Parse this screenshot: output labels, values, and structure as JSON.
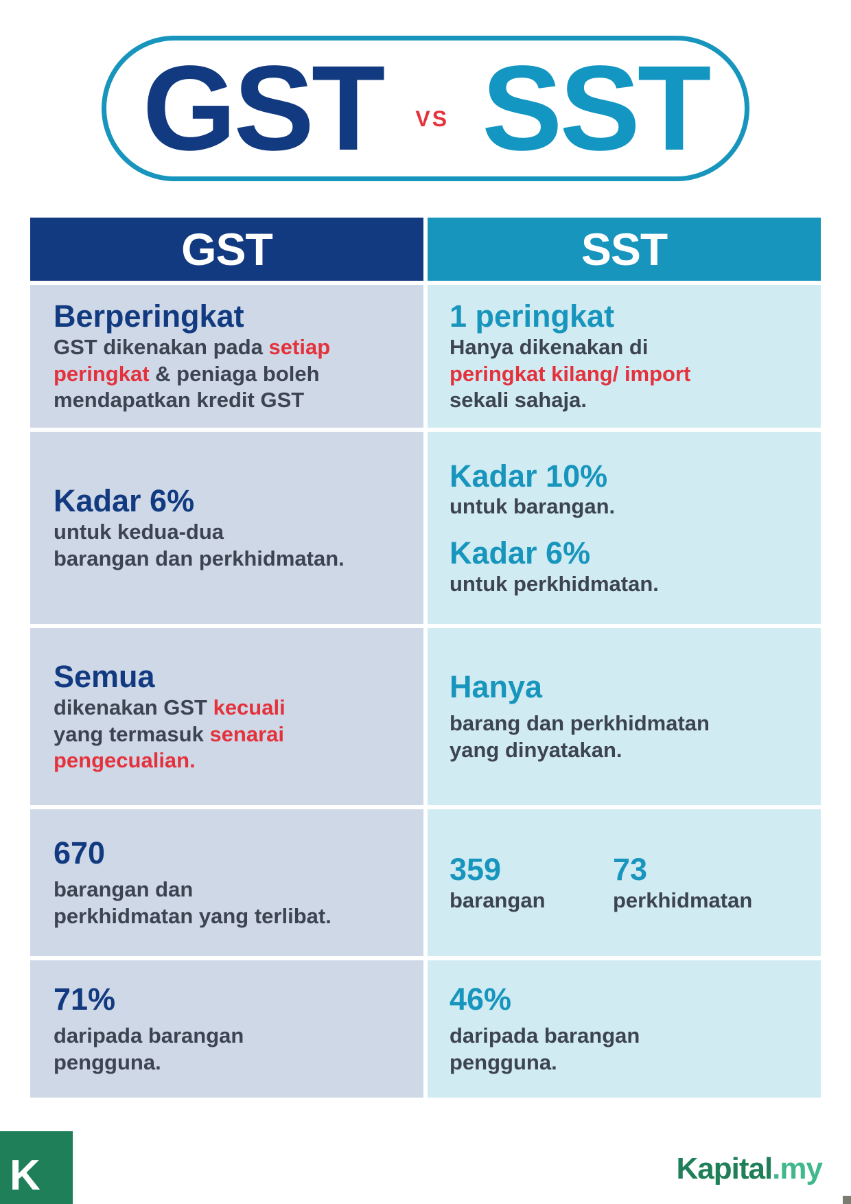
{
  "title": {
    "left": "GST",
    "vs": "VS",
    "right": "SST"
  },
  "header": {
    "gst": "GST",
    "sst": "SST"
  },
  "rows": [
    {
      "gst": {
        "heading": "Berperingkat",
        "line1_a": "GST dikenakan pada ",
        "line1_red": "setiap",
        "line2_red": "peringkat",
        "line2_b": " & peniaga boleh",
        "line3": "mendapatkan kredit GST"
      },
      "sst": {
        "heading": "1 peringkat",
        "line1": "Hanya dikenakan di",
        "line2_red": "peringkat kilang/ import",
        "line3": "sekali sahaja."
      }
    },
    {
      "gst": {
        "heading": "Kadar 6%",
        "line1": "untuk kedua-dua",
        "line2": "barangan dan perkhidmatan."
      },
      "sst": {
        "heading1": "Kadar 10%",
        "text1": "untuk barangan.",
        "heading2": "Kadar 6%",
        "text2": "untuk perkhidmatan."
      }
    },
    {
      "gst": {
        "heading": "Semua",
        "line1_a": "dikenakan GST ",
        "line1_red": "kecuali",
        "line2_a": "yang termasuk ",
        "line2_red": "senarai",
        "line3_red": "pengecualian."
      },
      "sst": {
        "heading": "Hanya",
        "line1": "barang dan perkhidmatan",
        "line2": "yang dinyatakan."
      }
    },
    {
      "gst": {
        "heading": "670",
        "line1": "barangan dan",
        "line2": "perkhidmatan yang terlibat."
      },
      "sst": {
        "num1": "359",
        "label1": "barangan",
        "num2": "73",
        "label2": "perkhidmatan"
      }
    },
    {
      "gst": {
        "heading": "71%",
        "line1": "daripada barangan",
        "line2": "pengguna."
      },
      "sst": {
        "heading": "46%",
        "line1": "daripada barangan",
        "line2": "pengguna."
      }
    }
  ],
  "footer": {
    "logo_letter": "K",
    "brand_main": "Kapital",
    "brand_tld": ".my"
  },
  "colors": {
    "gst_dark": "#123a80",
    "sst_teal": "#1795bd",
    "accent_red": "#e4323d",
    "gst_cell_bg": "#cfd8e6",
    "sst_cell_bg": "#d1ebf3",
    "brand_green": "#1e7f58"
  }
}
